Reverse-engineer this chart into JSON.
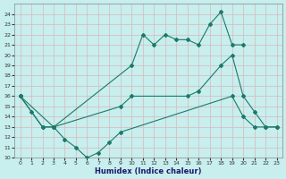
{
  "title": "",
  "xlabel": "Humidex (Indice chaleur)",
  "ylabel": "",
  "background_color": "#c8eeee",
  "grid_color": "#c0dede",
  "line_color": "#1a7a6a",
  "ylim": [
    10,
    25
  ],
  "xlim": [
    -0.5,
    23.5
  ],
  "yticks": [
    10,
    11,
    12,
    13,
    14,
    15,
    16,
    17,
    18,
    19,
    20,
    21,
    22,
    23,
    24
  ],
  "xticks": [
    0,
    1,
    2,
    3,
    4,
    5,
    6,
    7,
    8,
    9,
    10,
    11,
    12,
    13,
    14,
    15,
    16,
    17,
    18,
    19,
    20,
    21,
    22,
    23
  ],
  "line1_x": [
    0,
    1,
    2,
    3,
    4,
    5,
    6,
    7,
    8,
    9,
    19,
    20,
    21,
    22,
    23
  ],
  "line1_y": [
    16,
    14.5,
    13,
    13,
    11.8,
    11.0,
    10.0,
    10.5,
    11.5,
    12.5,
    16,
    14,
    13,
    13,
    13
  ],
  "line2_x": [
    0,
    3,
    10,
    11,
    12,
    13,
    14,
    15,
    16,
    17,
    18,
    19,
    20
  ],
  "line2_y": [
    16,
    13,
    19,
    22,
    21,
    22,
    21.5,
    21.5,
    21,
    23,
    24.2,
    21,
    21
  ],
  "line3_x": [
    0,
    2,
    3,
    9,
    10,
    15,
    16,
    18,
    19,
    20,
    21,
    22,
    23
  ],
  "line3_y": [
    16,
    13,
    13,
    15,
    16,
    16,
    16.5,
    19,
    20,
    16,
    14.5,
    13,
    13
  ]
}
